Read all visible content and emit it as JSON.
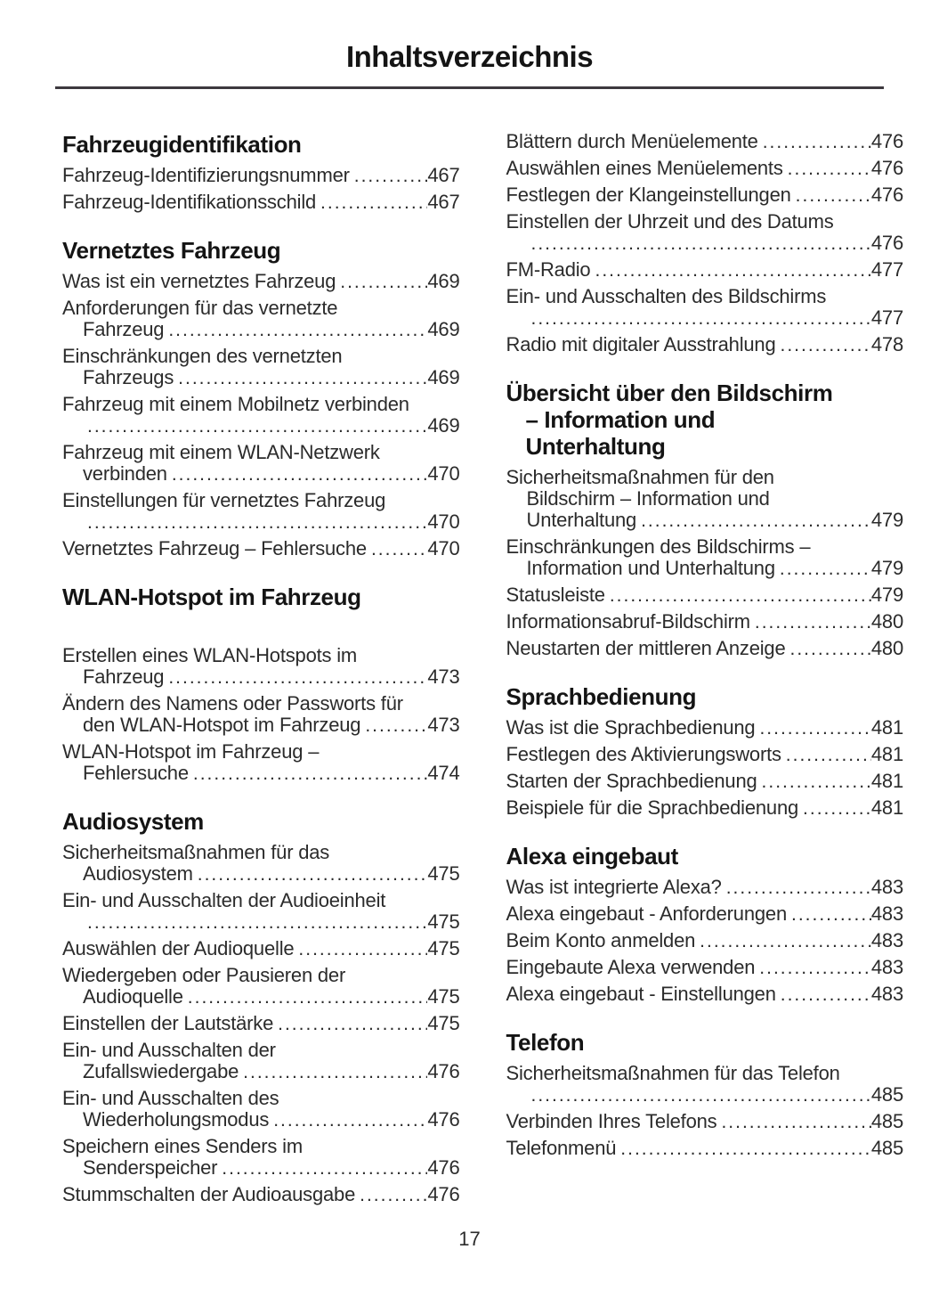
{
  "page": {
    "title": "Inhaltsverzeichnis",
    "number": "17"
  },
  "colors": {
    "background": "#ffffff",
    "text": "#2b2b2b",
    "heading": "#141414",
    "rule": "#3d393f"
  },
  "columns": [
    {
      "sections": [
        {
          "heading_lines": [
            "Fahrzeugidentifikation"
          ],
          "entries": [
            {
              "lines": [
                "Fahrzeug-Identifizierungsnummer"
              ],
              "page": "467"
            },
            {
              "lines": [
                "Fahrzeug-Identifikationsschild"
              ],
              "page": "467"
            }
          ]
        },
        {
          "heading_lines": [
            "Vernetztes Fahrzeug"
          ],
          "entries": [
            {
              "lines": [
                "Was ist ein vernetztes Fahrzeug"
              ],
              "page": "469"
            },
            {
              "lines": [
                "Anforderungen für das vernetzte",
                "Fahrzeug"
              ],
              "page": "469"
            },
            {
              "lines": [
                "Einschränkungen des vernetzten",
                "Fahrzeugs"
              ],
              "page": "469"
            },
            {
              "lines": [
                "Fahrzeug mit einem Mobilnetz verbinden",
                ""
              ],
              "page": "469"
            },
            {
              "lines": [
                "Fahrzeug mit einem WLAN-Netzwerk",
                "verbinden"
              ],
              "page": "470"
            },
            {
              "lines": [
                "Einstellungen für vernetztes Fahrzeug",
                ""
              ],
              "page": "470"
            },
            {
              "lines": [
                "Vernetztes Fahrzeug – Fehlersuche"
              ],
              "page": "470"
            }
          ]
        },
        {
          "heading_lines": [
            "WLAN-Hotspot im Fahrzeug"
          ],
          "extra_heading_gap": true,
          "entries": [
            {
              "lines": [
                "Erstellen eines WLAN-Hotspots im",
                "Fahrzeug"
              ],
              "page": "473"
            },
            {
              "lines": [
                "Ändern des Namens oder Passworts für",
                "den WLAN-Hotspot im Fahrzeug"
              ],
              "page": "473"
            },
            {
              "lines": [
                "WLAN-Hotspot im Fahrzeug –",
                "Fehlersuche"
              ],
              "page": "474"
            }
          ]
        },
        {
          "heading_lines": [
            "Audiosystem"
          ],
          "entries": [
            {
              "lines": [
                "Sicherheitsmaßnahmen für das",
                "Audiosystem"
              ],
              "page": "475"
            },
            {
              "lines": [
                "Ein- und Ausschalten der Audioeinheit",
                ""
              ],
              "page": "475"
            },
            {
              "lines": [
                "Auswählen der Audioquelle"
              ],
              "page": "475"
            },
            {
              "lines": [
                "Wiedergeben oder Pausieren der",
                "Audioquelle"
              ],
              "page": "475"
            },
            {
              "lines": [
                "Einstellen der Lautstärke"
              ],
              "page": "475"
            },
            {
              "lines": [
                "Ein- und Ausschalten der",
                "Zufallswiedergabe"
              ],
              "page": "476"
            },
            {
              "lines": [
                "Ein- und Ausschalten des",
                "Wiederholungsmodus"
              ],
              "page": "476"
            },
            {
              "lines": [
                "Speichern eines Senders im",
                "Senderspeicher"
              ],
              "page": "476"
            },
            {
              "lines": [
                "Stummschalten der Audioausgabe"
              ],
              "page": "476"
            }
          ]
        }
      ]
    },
    {
      "sections": [
        {
          "heading_lines": [],
          "entries": [
            {
              "lines": [
                "Blättern durch Menüelemente"
              ],
              "page": "476"
            },
            {
              "lines": [
                "Auswählen eines Menüelements"
              ],
              "page": "476"
            },
            {
              "lines": [
                "Festlegen der Klangeinstellungen"
              ],
              "page": "476"
            },
            {
              "lines": [
                "Einstellen der Uhrzeit und des Datums",
                ""
              ],
              "page": "476"
            },
            {
              "lines": [
                "FM-Radio"
              ],
              "page": "477"
            },
            {
              "lines": [
                "Ein- und Ausschalten des Bildschirms",
                ""
              ],
              "page": "477"
            },
            {
              "lines": [
                "Radio mit digitaler Ausstrahlung"
              ],
              "page": "478"
            }
          ]
        },
        {
          "heading_lines": [
            "Übersicht über den Bildschirm",
            "– Information und",
            "Unterhaltung"
          ],
          "entries": [
            {
              "lines": [
                "Sicherheitsmaßnahmen für den",
                "Bildschirm – Information und",
                "Unterhaltung"
              ],
              "page": "479"
            },
            {
              "lines": [
                "Einschränkungen des Bildschirms –",
                "Information und Unterhaltung"
              ],
              "page": "479"
            },
            {
              "lines": [
                "Statusleiste"
              ],
              "page": "479"
            },
            {
              "lines": [
                "Informationsabruf-Bildschirm"
              ],
              "page": "480"
            },
            {
              "lines": [
                "Neustarten der mittleren Anzeige"
              ],
              "page": "480"
            }
          ]
        },
        {
          "heading_lines": [
            "Sprachbedienung"
          ],
          "entries": [
            {
              "lines": [
                "Was ist die Sprachbedienung"
              ],
              "page": "481"
            },
            {
              "lines": [
                "Festlegen des Aktivierungsworts"
              ],
              "page": "481"
            },
            {
              "lines": [
                "Starten der Sprachbedienung"
              ],
              "page": "481"
            },
            {
              "lines": [
                "Beispiele für die Sprachbedienung"
              ],
              "page": "481"
            }
          ]
        },
        {
          "heading_lines": [
            "Alexa eingebaut"
          ],
          "entries": [
            {
              "lines": [
                "Was ist integrierte Alexa?"
              ],
              "page": "483"
            },
            {
              "lines": [
                "Alexa eingebaut - Anforderungen"
              ],
              "page": "483"
            },
            {
              "lines": [
                "Beim Konto anmelden"
              ],
              "page": "483"
            },
            {
              "lines": [
                "Eingebaute Alexa verwenden"
              ],
              "page": "483"
            },
            {
              "lines": [
                "Alexa eingebaut - Einstellungen"
              ],
              "page": "483"
            }
          ]
        },
        {
          "heading_lines": [
            "Telefon"
          ],
          "entries": [
            {
              "lines": [
                "Sicherheitsmaßnahmen für das Telefon",
                ""
              ],
              "page": "485"
            },
            {
              "lines": [
                "Verbinden Ihres Telefons"
              ],
              "page": "485"
            },
            {
              "lines": [
                "Telefonmenü"
              ],
              "page": "485"
            }
          ]
        }
      ]
    }
  ]
}
